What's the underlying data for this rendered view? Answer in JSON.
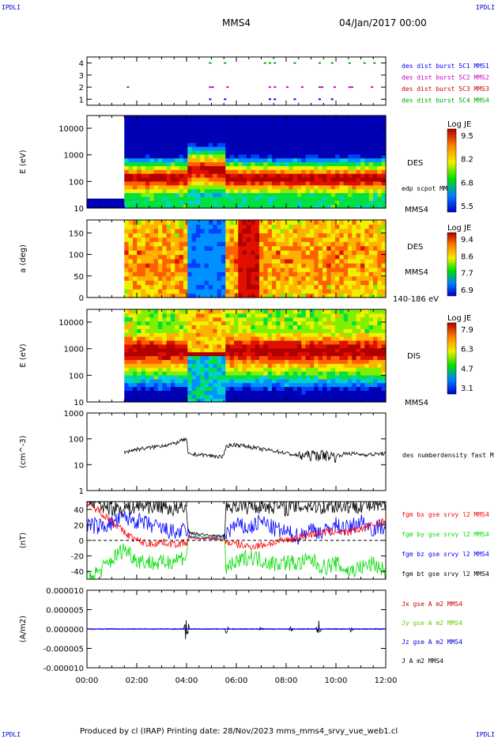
{
  "header": {
    "corner_tl": "IPDLI",
    "corner_tr": "IPDLI",
    "corner_bl": "IPDLI",
    "corner_br": "IPDLI",
    "spacecraft": "MMS4",
    "datetime": "04/Jan/2017 00:00"
  },
  "footer": {
    "text": "Produced by cl (IRAP)   Printing date: 28/Nov/2023   mms_mms4_srvy_vue_web1.cl"
  },
  "colors": {
    "mms1": "#0000ff",
    "mms2": "#cc00cc",
    "mms3": "#cc0000",
    "mms4": "#00aa00",
    "bx": "#ff0000",
    "by": "#00dd00",
    "bz": "#0000ff",
    "bt": "#000000"
  },
  "chart_data": [
    {
      "type": "scatter",
      "name": "burst availability",
      "yticks": [
        "1",
        "2",
        "3",
        "4"
      ],
      "ylim": [
        0.5,
        4.5
      ],
      "legend": [
        "des dist burst 5C1 MMS1",
        "des dist burst 5C2 MMS2",
        "des dist burst 5C3 MMS3",
        "des dist burst 5C4 MMS4"
      ],
      "series": [
        {
          "level": 4,
          "color_key": "mms4",
          "x": [
            4.9,
            5.5,
            7.1,
            7.3,
            7.5,
            8.3,
            9.3,
            9.8,
            10.5,
            11.1,
            11.5
          ]
        },
        {
          "level": 2,
          "color_key": "mms2",
          "x": [
            1.6,
            4.9,
            5.0,
            5.6,
            7.3,
            7.5,
            8.0,
            8.6,
            9.3,
            9.4,
            9.9,
            10.5,
            10.6,
            11.4
          ]
        },
        {
          "level": 1,
          "color_key": "mms1",
          "x": [
            4.9,
            5.5,
            7.3,
            7.5,
            8.3,
            9.3,
            9.8
          ]
        }
      ]
    },
    {
      "type": "heatmap",
      "name": "DES energy spectrogram",
      "ylabel": "E (eV)",
      "yscale": "log",
      "ylim": [
        10,
        30000
      ],
      "yticks": [
        "10",
        "100",
        "1000",
        "10000"
      ],
      "side_labels": [
        "DES",
        "edp scpot MMS4",
        "MMS4"
      ],
      "colorbar": {
        "title": "Log JE",
        "ticks": [
          "9.5",
          "8.2",
          "6.8",
          "5.5"
        ]
      },
      "data_start_hour": 1.5
    },
    {
      "type": "heatmap",
      "name": "DES pitch angle",
      "ylabel": "a (deg)",
      "ylim": [
        0,
        180
      ],
      "yticks": [
        "0",
        "50",
        "100",
        "150"
      ],
      "side_labels": [
        "DES",
        "MMS4",
        "140-186 eV"
      ],
      "colorbar": {
        "title": "Log JE",
        "ticks": [
          "9.4",
          "8.6",
          "7.7",
          "6.9"
        ]
      },
      "data_start_hour": 1.5
    },
    {
      "type": "heatmap",
      "name": "DIS energy spectrogram",
      "ylabel": "E (eV)",
      "yscale": "log",
      "ylim": [
        10,
        30000
      ],
      "yticks": [
        "10",
        "100",
        "1000",
        "10000"
      ],
      "side_labels": [
        "DIS",
        "MMS4"
      ],
      "colorbar": {
        "title": "Log JE",
        "ticks": [
          "7.9",
          "6.3",
          "4.7",
          "3.1"
        ]
      },
      "data_start_hour": 1.5
    },
    {
      "type": "line",
      "name": "density",
      "ylabel": "(cm^-3)",
      "yscale": "log",
      "ylim": [
        1,
        1000
      ],
      "yticks": [
        "1",
        "10",
        "100",
        "1000"
      ],
      "legend": [
        "des numberdensity fast M"
      ],
      "x": [
        1.5,
        2.0,
        2.5,
        3.0,
        3.5,
        4.0,
        4.05,
        4.5,
        5.0,
        5.5,
        5.6,
        6.0,
        6.5,
        7.0,
        7.5,
        8.0,
        8.5,
        9.0,
        9.5,
        10.0,
        10.5,
        11.0,
        11.5,
        12.0
      ],
      "y": [
        30,
        40,
        45,
        55,
        65,
        100,
        25,
        25,
        22,
        20,
        55,
        60,
        50,
        40,
        35,
        28,
        22,
        25,
        25,
        22,
        28,
        25,
        25,
        28
      ]
    },
    {
      "type": "line",
      "name": "magnetic field",
      "ylabel": "(nT)",
      "ylim": [
        -50,
        50
      ],
      "yticks": [
        "-40",
        "-20",
        "0",
        "20",
        "40"
      ],
      "legend": [
        "fgm bx gse srvy l2 MMS4",
        "fgm by gse srvy l2 MMS4",
        "fgm bz gse srvy l2 MMS4",
        "fgm bt gse srvy l2 MMS4"
      ],
      "x": [
        0.0,
        0.5,
        1.0,
        1.5,
        2.0,
        2.5,
        3.0,
        3.5,
        4.0,
        4.1,
        4.5,
        5.0,
        5.5,
        5.6,
        6.0,
        6.5,
        7.0,
        7.5,
        8.0,
        8.5,
        9.0,
        9.5,
        10.0,
        10.5,
        11.0,
        11.5,
        12.0
      ],
      "series": [
        {
          "name": "bx",
          "color_key": "bx",
          "values": [
            48,
            38,
            25,
            10,
            0,
            -5,
            -2,
            -5,
            -3,
            4,
            2,
            3,
            0,
            -2,
            -5,
            -8,
            -6,
            -3,
            0,
            4,
            8,
            10,
            12,
            10,
            15,
            20,
            25
          ]
        },
        {
          "name": "by",
          "color_key": "by",
          "values": [
            -48,
            -40,
            -25,
            -10,
            -25,
            -28,
            -30,
            -25,
            -20,
            10,
            5,
            3,
            2,
            -35,
            -30,
            -20,
            -25,
            -30,
            -28,
            -30,
            -25,
            -35,
            -30,
            -40,
            -35,
            -30,
            -40
          ]
        },
        {
          "name": "bz",
          "color_key": "bz",
          "values": [
            20,
            18,
            22,
            30,
            25,
            20,
            15,
            10,
            12,
            5,
            3,
            2,
            5,
            10,
            20,
            15,
            25,
            15,
            10,
            5,
            15,
            10,
            20,
            15,
            25,
            15,
            20
          ]
        },
        {
          "name": "bt",
          "color_key": "bt",
          "values": [
            52,
            48,
            42,
            42,
            45,
            45,
            45,
            40,
            40,
            10,
            8,
            6,
            6,
            45,
            45,
            44,
            45,
            45,
            42,
            44,
            45,
            44,
            45,
            45,
            46,
            45,
            46
          ]
        }
      ]
    },
    {
      "type": "line",
      "name": "current density",
      "ylabel": "(A/m2)",
      "ylim": [
        -1e-05,
        1e-05
      ],
      "yticks": [
        "-0.000010",
        "-0.000005",
        "0.000000",
        "0.000005",
        "0.000010"
      ],
      "legend": [
        "Jx gse A m2 MMS4",
        "Jy gse A m2 MMS4",
        "Jz gse A m2 MMS4",
        "J A m2 MMS4"
      ],
      "spikes_x": [
        4.0,
        5.6,
        7.0,
        8.2,
        9.3,
        10.6
      ],
      "spikes_y": [
        4.2e-06,
        1.2e-06,
        1e-06,
        8e-07,
        2.4e-06,
        1.2e-06
      ]
    }
  ],
  "xaxis": {
    "xlim": [
      0,
      12
    ],
    "ticks": [
      "00:00",
      "02:00",
      "04:00",
      "06:00",
      "08:00",
      "10:00",
      "12:00"
    ]
  }
}
